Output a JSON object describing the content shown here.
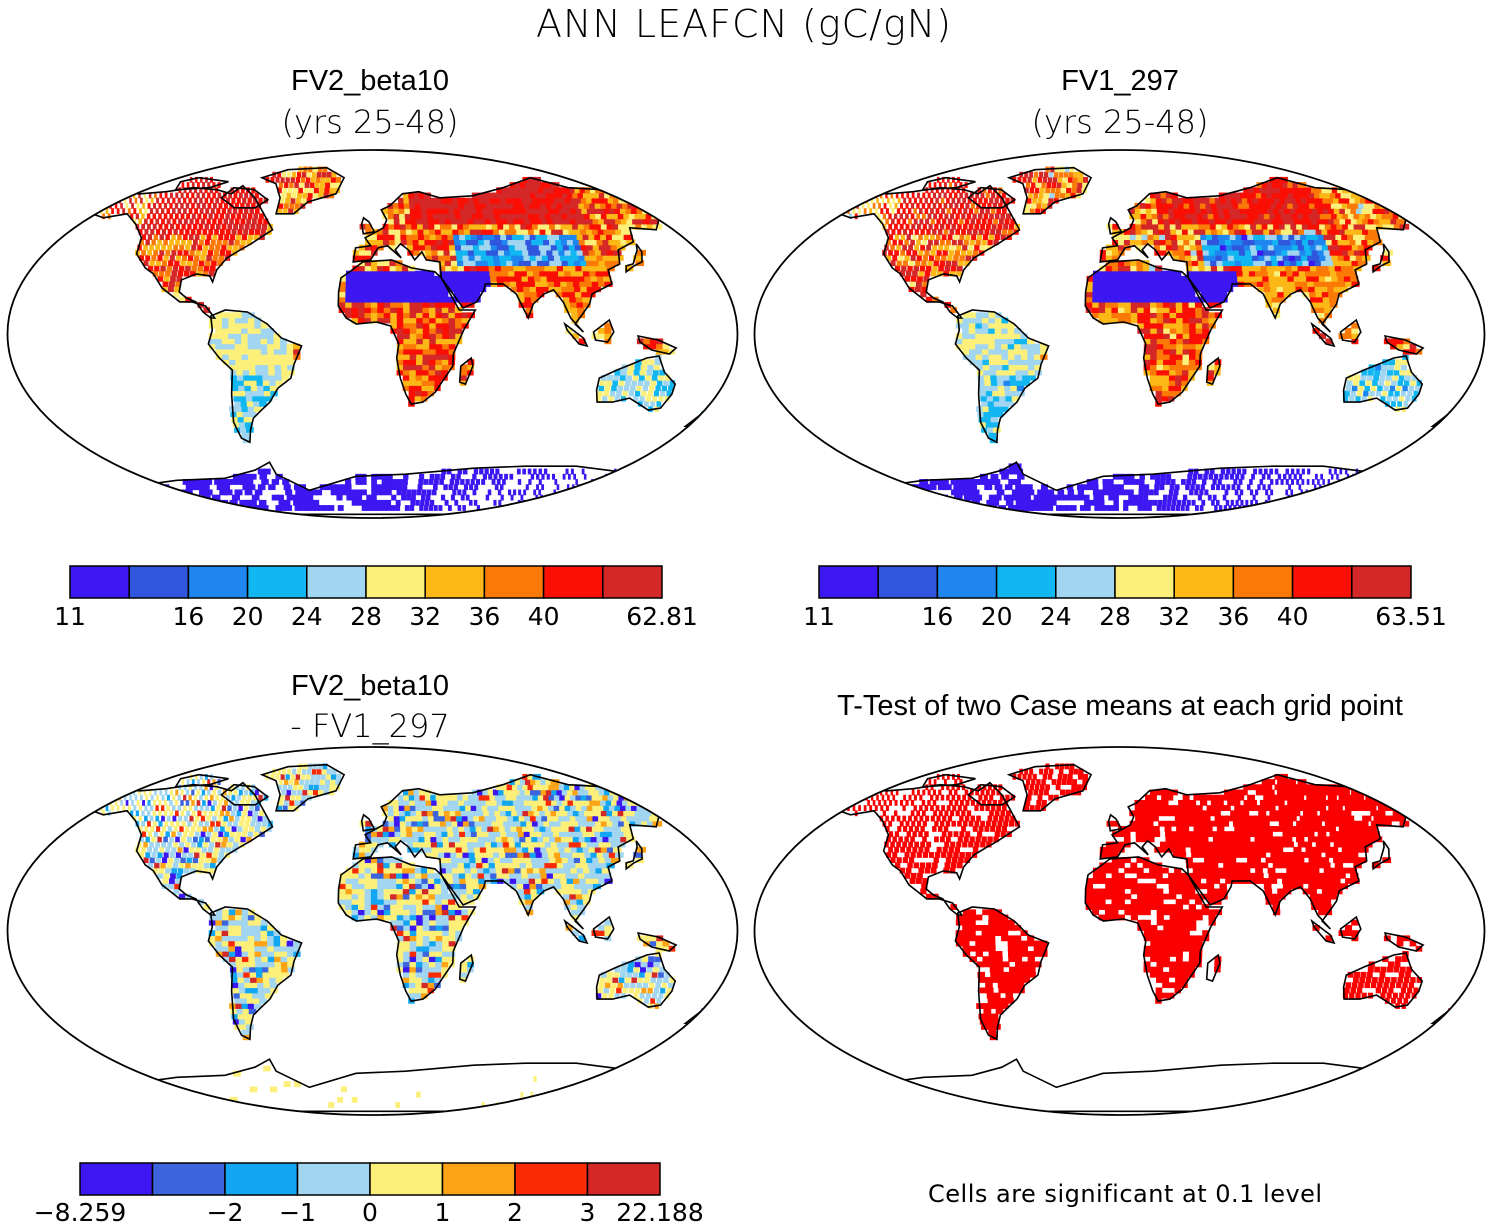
{
  "title": "ANN LEAFCN (gC/gN)",
  "panels": {
    "top_left": {
      "title": "FV2_beta10",
      "subtitle": "(yrs 25-48)"
    },
    "top_right": {
      "title": "FV1_297",
      "subtitle": "(yrs 25-48)"
    },
    "bottom_left": {
      "title": "FV2_beta10",
      "subtitle": "- FV1_297"
    },
    "bottom_right": {
      "title": "T-Test of two Case means at each grid point",
      "footnote": "Cells are significant at 0.1 level"
    }
  },
  "colorbars": {
    "top_left": {
      "colors": [
        "#3d17f2",
        "#2f56dc",
        "#1e86ee",
        "#12b7f2",
        "#a2d5ef",
        "#fcf07a",
        "#fcb816",
        "#fb7a07",
        "#fa0f04",
        "#d42828"
      ],
      "labels": [
        "11",
        "",
        "16",
        "20",
        "24",
        "28",
        "32",
        "36",
        "40",
        "",
        "62.81"
      ]
    },
    "top_right": {
      "colors": [
        "#3d17f2",
        "#2f56dc",
        "#1e86ee",
        "#12b7f2",
        "#a2d5ef",
        "#fcf07a",
        "#fcb816",
        "#fb7a07",
        "#fa0f04",
        "#d42828"
      ],
      "labels": [
        "11",
        "",
        "16",
        "20",
        "24",
        "28",
        "32",
        "36",
        "40",
        "",
        "63.51"
      ]
    },
    "bottom_left": {
      "colors": [
        "#3d17f2",
        "#3c64dc",
        "#12a6f2",
        "#a2d5ef",
        "#fcf07a",
        "#fca316",
        "#fa2a04",
        "#d42828"
      ],
      "labels": [
        "-8.259",
        "",
        "-2",
        "-1",
        "0",
        "1",
        "2",
        "3",
        "22.188"
      ]
    }
  },
  "chart_data": [
    {
      "type": "heatmap",
      "title": "FV2_beta10 (yrs 25-48)",
      "variable": "LEAFCN",
      "units": "gC/gN",
      "levels": [
        11,
        16,
        20,
        24,
        28,
        32,
        36,
        40,
        62.81
      ]
    },
    {
      "type": "heatmap",
      "title": "FV1_297 (yrs 25-48)",
      "variable": "LEAFCN",
      "units": "gC/gN",
      "levels": [
        11,
        16,
        20,
        24,
        28,
        32,
        36,
        40,
        63.51
      ]
    },
    {
      "type": "heatmap",
      "title": "FV2_beta10 - FV1_297",
      "variable": "LEAFCN difference",
      "units": "gC/gN",
      "levels": [
        -8.259,
        -2,
        -1,
        0,
        1,
        2,
        3,
        22.188
      ]
    },
    {
      "type": "heatmap",
      "title": "T-Test of two Case means at each grid point",
      "significance_level": 0.1,
      "significant_color": "#fa0000"
    }
  ]
}
